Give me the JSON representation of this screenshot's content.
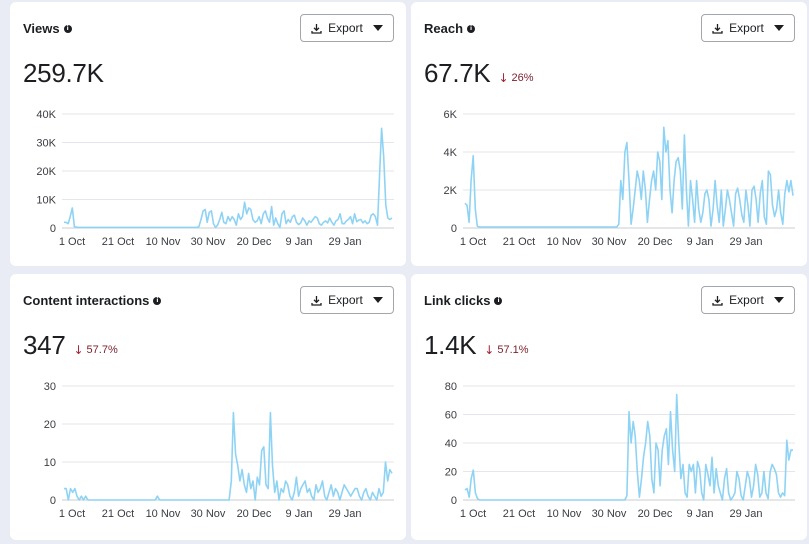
{
  "cards": [
    {
      "title": "Views",
      "value": "259.7K",
      "change": "",
      "export_label": "Export",
      "chart_data": {
        "type": "line",
        "x_labels": [
          "1 Oct",
          "21 Oct",
          "10 Nov",
          "30 Nov",
          "20 Dec",
          "9 Jan",
          "29 Jan"
        ],
        "y_ticks": [
          "0",
          "10K",
          "20K",
          "30K",
          "40K"
        ],
        "ymax": 40000,
        "values": [
          2000,
          2000,
          1500,
          4000,
          7000,
          500,
          300,
          200,
          200,
          200,
          200,
          200,
          200,
          200,
          200,
          200,
          200,
          200,
          200,
          200,
          200,
          200,
          200,
          200,
          200,
          200,
          200,
          200,
          200,
          200,
          200,
          200,
          200,
          200,
          200,
          200,
          200,
          200,
          200,
          200,
          200,
          200,
          200,
          200,
          200,
          200,
          200,
          200,
          200,
          200,
          200,
          200,
          200,
          200,
          200,
          200,
          200,
          200,
          200,
          200,
          200,
          200,
          200,
          200,
          200,
          500,
          3000,
          6000,
          6500,
          2000,
          5500,
          6000,
          1500,
          200,
          1000,
          3000,
          5500,
          2000,
          1500,
          4000,
          2500,
          4000,
          3000,
          1000,
          5000,
          3000,
          4000,
          9000,
          5000,
          7000,
          6500,
          3000,
          2000,
          2500,
          4000,
          1500,
          5000,
          6000,
          3500,
          2000,
          7500,
          1000,
          3500,
          1500,
          200,
          5000,
          6000,
          1500,
          3000,
          2000,
          4000,
          4500,
          2000,
          1200,
          1800,
          3500,
          2500,
          1000,
          2500,
          2000,
          3000,
          4000,
          3500,
          1500,
          1000,
          2000,
          2500,
          1800,
          3500,
          2000,
          1000,
          2500,
          3000,
          5000,
          1500,
          1500,
          2500,
          3000,
          4000,
          1500,
          5000,
          2200,
          2800,
          3000,
          1800,
          2500,
          1500,
          2000,
          4500,
          5000,
          4000,
          1000,
          18000,
          35000,
          25000,
          8000,
          3500,
          3000,
          3500
        ]
      }
    },
    {
      "title": "Reach",
      "value": "67.7K",
      "change": "26%",
      "export_label": "Export",
      "chart_data": {
        "type": "line",
        "x_labels": [
          "1 Oct",
          "21 Oct",
          "10 Nov",
          "30 Nov",
          "20 Dec",
          "9 Jan",
          "29 Jan"
        ],
        "y_ticks": [
          "0",
          "2K",
          "4K",
          "6K"
        ],
        "ymax": 6000,
        "values": [
          1300,
          1200,
          300,
          2500,
          3800,
          1000,
          100,
          50,
          50,
          50,
          50,
          50,
          50,
          50,
          50,
          50,
          50,
          50,
          50,
          50,
          50,
          50,
          50,
          50,
          50,
          50,
          50,
          50,
          50,
          50,
          50,
          50,
          50,
          50,
          50,
          50,
          50,
          50,
          50,
          50,
          50,
          50,
          50,
          50,
          50,
          50,
          50,
          50,
          50,
          50,
          50,
          50,
          50,
          50,
          50,
          50,
          50,
          50,
          50,
          50,
          50,
          50,
          50,
          50,
          50,
          50,
          50,
          50,
          50,
          50,
          50,
          50,
          50,
          50,
          50,
          200,
          2500,
          1500,
          4000,
          4500,
          2500,
          200,
          1000,
          2000,
          3000,
          2500,
          1500,
          3000,
          2000,
          300,
          1500,
          2500,
          3000,
          2000,
          4000,
          3500,
          1500,
          5300,
          4000,
          4600,
          2000,
          800,
          2500,
          3500,
          3700,
          3000,
          1000,
          4900,
          2000,
          100,
          2500,
          1500,
          300,
          2500,
          1000,
          300,
          800,
          1800,
          2000,
          1500,
          100,
          1000,
          2500,
          1200,
          300,
          2000,
          100,
          1000,
          2000,
          1500,
          800,
          100,
          1800,
          2100,
          1500,
          700,
          300,
          2000,
          1200,
          100,
          2000,
          2200,
          1500,
          300,
          1800,
          2500,
          600,
          200,
          3000,
          2800,
          1200,
          600,
          1000,
          2000,
          800,
          200,
          1800,
          2500,
          1900,
          2500,
          1700
        ]
      }
    },
    {
      "title": "Content interactions",
      "value": "347",
      "change": "57.7%",
      "export_label": "Export",
      "chart_data": {
        "type": "line",
        "x_labels": [
          "1 Oct",
          "21 Oct",
          "10 Nov",
          "30 Nov",
          "20 Dec",
          "9 Jan",
          "29 Jan"
        ],
        "y_ticks": [
          "0",
          "10",
          "20",
          "30"
        ],
        "ymax": 30,
        "values": [
          3,
          3,
          0,
          3,
          2,
          3,
          1,
          0,
          1,
          0,
          1,
          0,
          0,
          0,
          0,
          0,
          0,
          0,
          0,
          0,
          0,
          0,
          0,
          0,
          0,
          0,
          0,
          0,
          0,
          0,
          0,
          0,
          0,
          0,
          0,
          0,
          0,
          0,
          0,
          0,
          0,
          0,
          0,
          1,
          0,
          0,
          0,
          0,
          0,
          0,
          0,
          0,
          0,
          0,
          0,
          0,
          0,
          0,
          0,
          0,
          0,
          0,
          0,
          0,
          0,
          0,
          0,
          0,
          0,
          0,
          0,
          0,
          0,
          0,
          0,
          0,
          0,
          5,
          23,
          12,
          9,
          5,
          8,
          4,
          2,
          7,
          3,
          5,
          0,
          6,
          4,
          13,
          14,
          4,
          3,
          23,
          9,
          2,
          5,
          0,
          3,
          2,
          5,
          4,
          1,
          0,
          2,
          6,
          1,
          3,
          4,
          5,
          2,
          3,
          1,
          0,
          4,
          2,
          3,
          5,
          1,
          0,
          2,
          4,
          1,
          3,
          2,
          0,
          2,
          4,
          3,
          2,
          1,
          2,
          3,
          3,
          1,
          0,
          2,
          3,
          1,
          0,
          2,
          1,
          0,
          3,
          1,
          2,
          10,
          5,
          8,
          7
        ]
      }
    },
    {
      "title": "Link clicks",
      "value": "1.4K",
      "change": "57.1%",
      "export_label": "Export",
      "chart_data": {
        "type": "line",
        "x_labels": [
          "1 Oct",
          "21 Oct",
          "10 Nov",
          "30 Nov",
          "20 Dec",
          "9 Jan",
          "29 Jan"
        ],
        "y_ticks": [
          "0",
          "20",
          "40",
          "60",
          "80"
        ],
        "ymax": 80,
        "values": [
          7,
          8,
          2,
          15,
          21,
          5,
          1,
          0,
          0,
          0,
          0,
          0,
          0,
          0,
          0,
          0,
          0,
          0,
          0,
          0,
          0,
          0,
          0,
          0,
          0,
          0,
          0,
          0,
          0,
          0,
          0,
          0,
          0,
          0,
          0,
          0,
          0,
          0,
          0,
          0,
          0,
          0,
          0,
          0,
          0,
          0,
          0,
          0,
          0,
          0,
          0,
          0,
          0,
          0,
          0,
          0,
          0,
          0,
          0,
          0,
          0,
          0,
          0,
          0,
          0,
          0,
          0,
          0,
          0,
          0,
          0,
          0,
          0,
          0,
          0,
          0,
          0,
          0,
          3,
          62,
          40,
          55,
          45,
          20,
          2,
          15,
          30,
          40,
          55,
          45,
          15,
          5,
          40,
          35,
          10,
          35,
          45,
          50,
          25,
          62,
          35,
          20,
          74,
          40,
          15,
          25,
          5,
          2,
          25,
          20,
          25,
          5,
          27,
          22,
          5,
          0,
          25,
          18,
          10,
          30,
          5,
          22,
          10,
          5,
          0,
          15,
          22,
          5,
          0,
          2,
          5,
          20,
          15,
          3,
          0,
          10,
          20,
          15,
          2,
          10,
          25,
          18,
          2,
          5,
          20,
          5,
          1,
          20,
          25,
          22,
          18,
          5,
          2,
          5,
          3,
          42,
          28,
          35,
          35
        ]
      }
    }
  ]
}
